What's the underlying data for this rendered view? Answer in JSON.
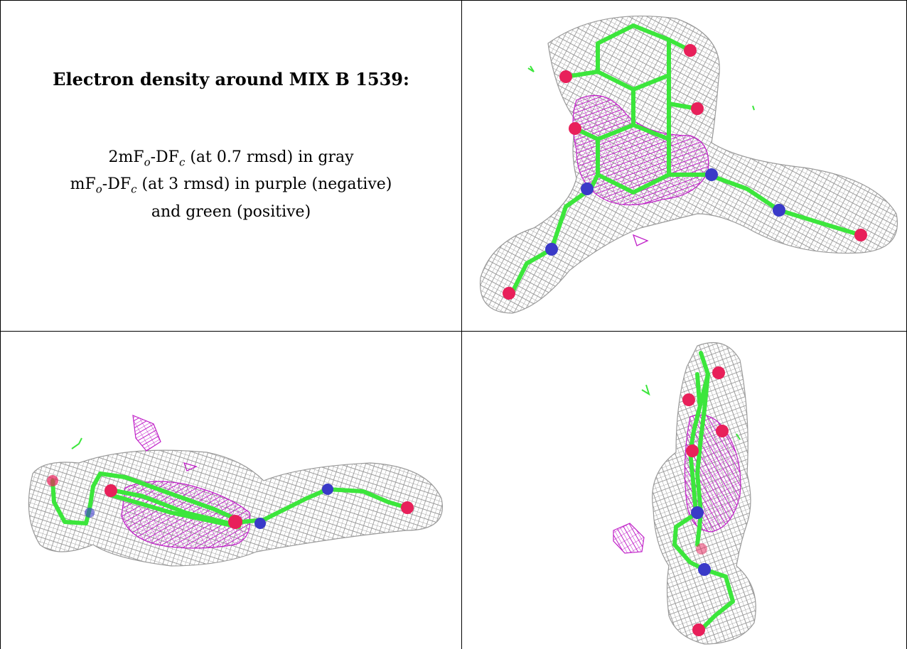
{
  "caption": {
    "title": "Electron density around MIX B 1539:",
    "line1_pre": "2mF",
    "line1_sub_o": "o",
    "line1_mid": "-DF",
    "line1_sub_c": "c",
    "line1_post": " (at 0.7 rmsd) in gray",
    "line2_pre": "mF",
    "line2_sub_o": "o",
    "line2_mid": "-DF",
    "line2_sub_c": "c",
    "line2_post": " (at 3 rmsd) in purple (negative)",
    "line3": "and green (positive)"
  },
  "colors": {
    "mesh_gray": "#9a9a9a",
    "mesh_purple": "#c020c8",
    "bond_green": "#3ce63c",
    "atom_red": "#e8205a",
    "atom_blue": "#3a3ac8"
  },
  "panels": [
    {
      "name": "top-right-view"
    },
    {
      "name": "bottom-left-view"
    },
    {
      "name": "bottom-right-view"
    }
  ]
}
